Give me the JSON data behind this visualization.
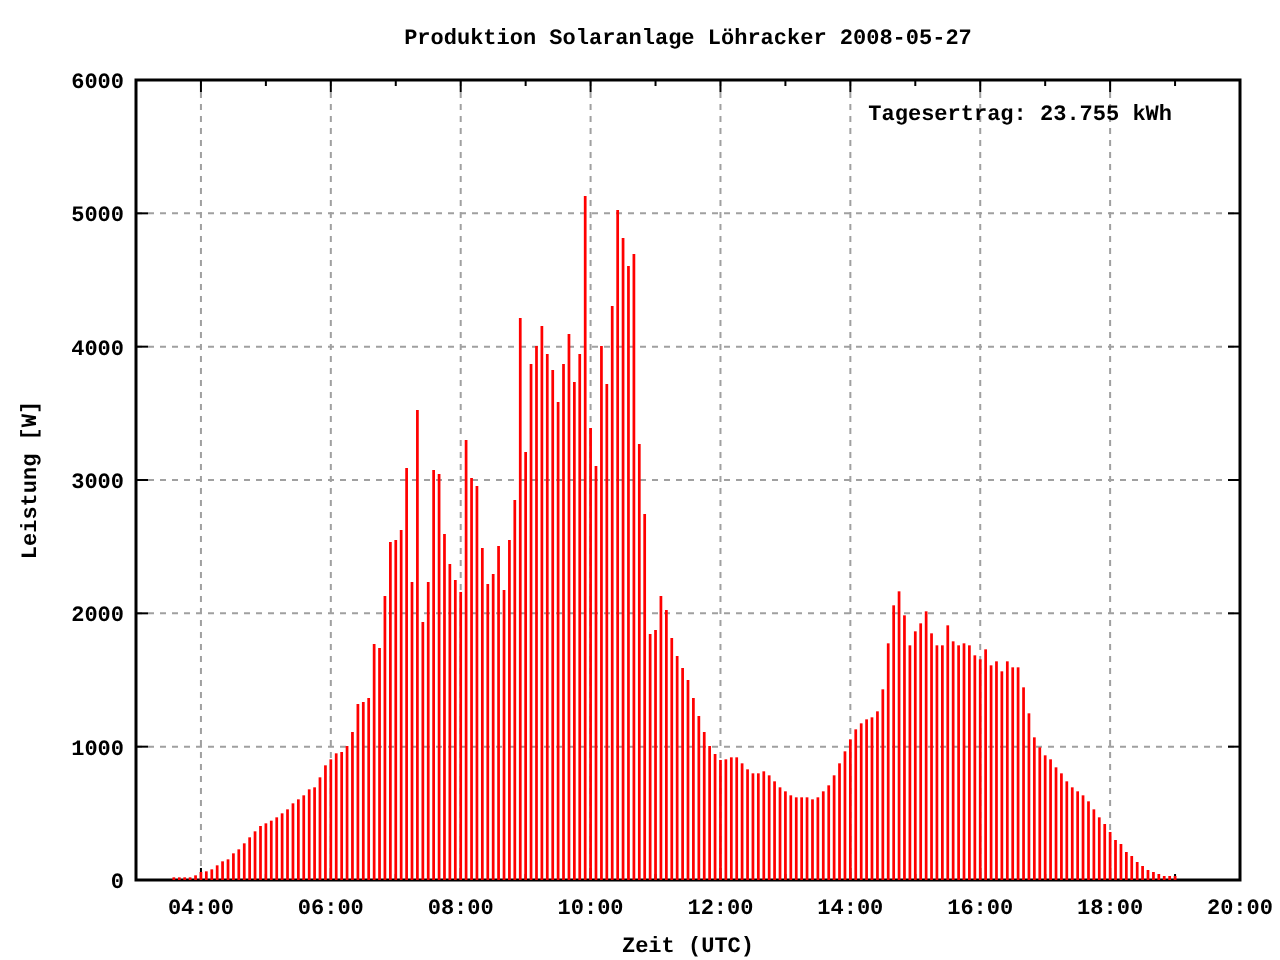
{
  "chart_data": {
    "type": "bar",
    "title": "Produktion Solaranlage Löhracker 2008-05-27",
    "xlabel": "Zeit (UTC)",
    "ylabel": "Leistung [W]",
    "annotations": [
      "Tagesertrag: 23.755 kWh"
    ],
    "x": [
      3.583,
      3.667,
      3.75,
      3.833,
      3.917,
      4,
      4.083,
      4.167,
      4.25,
      4.333,
      4.417,
      4.5,
      4.583,
      4.667,
      4.75,
      4.833,
      4.917,
      5,
      5.083,
      5.167,
      5.25,
      5.333,
      5.417,
      5.5,
      5.583,
      5.667,
      5.75,
      5.833,
      5.917,
      6,
      6.083,
      6.167,
      6.25,
      6.333,
      6.417,
      6.5,
      6.583,
      6.667,
      6.75,
      6.833,
      6.917,
      7,
      7.083,
      7.167,
      7.25,
      7.333,
      7.417,
      7.5,
      7.583,
      7.667,
      7.75,
      7.833,
      7.917,
      8,
      8.083,
      8.167,
      8.25,
      8.333,
      8.417,
      8.5,
      8.583,
      8.667,
      8.75,
      8.833,
      8.917,
      9,
      9.083,
      9.167,
      9.25,
      9.333,
      9.417,
      9.5,
      9.583,
      9.667,
      9.75,
      9.833,
      9.917,
      10,
      10.083,
      10.167,
      10.25,
      10.333,
      10.417,
      10.5,
      10.583,
      10.667,
      10.75,
      10.833,
      10.917,
      11,
      11.083,
      11.167,
      11.25,
      11.333,
      11.417,
      11.5,
      11.583,
      11.667,
      11.75,
      11.833,
      11.917,
      12,
      12.083,
      12.167,
      12.25,
      12.333,
      12.417,
      12.5,
      12.583,
      12.667,
      12.75,
      12.833,
      12.917,
      13,
      13.083,
      13.167,
      13.25,
      13.333,
      13.417,
      13.5,
      13.583,
      13.667,
      13.75,
      13.833,
      13.917,
      14,
      14.083,
      14.167,
      14.25,
      14.333,
      14.417,
      14.5,
      14.583,
      14.667,
      14.75,
      14.833,
      14.917,
      15,
      15.083,
      15.167,
      15.25,
      15.333,
      15.417,
      15.5,
      15.583,
      15.667,
      15.75,
      15.833,
      15.917,
      16,
      16.083,
      16.167,
      16.25,
      16.333,
      16.417,
      16.5,
      16.583,
      16.667,
      16.75,
      16.833,
      16.917,
      17,
      17.083,
      17.167,
      17.25,
      17.333,
      17.417,
      17.5,
      17.583,
      17.667,
      17.75,
      17.833,
      17.917,
      18,
      18.083,
      18.167,
      18.25,
      18.333,
      18.417,
      18.5,
      18.583,
      18.667,
      18.75,
      18.833,
      18.917,
      19
    ],
    "values": [
      20,
      20,
      20,
      20,
      35,
      60,
      65,
      80,
      110,
      140,
      155,
      200,
      230,
      275,
      320,
      365,
      405,
      425,
      445,
      470,
      500,
      530,
      575,
      605,
      635,
      680,
      695,
      770,
      860,
      905,
      950,
      960,
      1005,
      1110,
      1320,
      1335,
      1365,
      1770,
      1740,
      2130,
      2535,
      2550,
      2625,
      3090,
      2235,
      3525,
      1935,
      2235,
      3075,
      3045,
      2595,
      2370,
      2250,
      2160,
      3300,
      3015,
      2955,
      2490,
      2220,
      2295,
      2505,
      2175,
      2550,
      2850,
      4215,
      3210,
      3870,
      4005,
      4155,
      3945,
      3825,
      3585,
      3870,
      4095,
      3735,
      3945,
      5130,
      3390,
      3105,
      4005,
      3720,
      4305,
      5025,
      4815,
      4605,
      4695,
      3270,
      2745,
      1845,
      1875,
      2130,
      2025,
      1815,
      1680,
      1590,
      1500,
      1365,
      1230,
      1110,
      1005,
      945,
      900,
      905,
      920,
      920,
      875,
      830,
      800,
      800,
      815,
      785,
      740,
      695,
      665,
      635,
      620,
      620,
      620,
      605,
      620,
      665,
      710,
      785,
      875,
      965,
      1055,
      1130,
      1175,
      1205,
      1220,
      1265,
      1430,
      1775,
      2060,
      2165,
      1985,
      1760,
      1865,
      1925,
      2015,
      1850,
      1760,
      1760,
      1910,
      1790,
      1760,
      1775,
      1760,
      1685,
      1655,
      1730,
      1610,
      1640,
      1565,
      1640,
      1595,
      1595,
      1445,
      1250,
      1070,
      995,
      935,
      905,
      845,
      800,
      740,
      695,
      665,
      635,
      590,
      530,
      470,
      420,
      360,
      300,
      270,
      210,
      180,
      135,
      105,
      75,
      60,
      45,
      30,
      30,
      30
    ],
    "color": "#ff0000",
    "xlim": [
      3,
      20
    ],
    "xticks": [
      {
        "value": 4,
        "label": "04:00"
      },
      {
        "value": 5,
        "label": null
      },
      {
        "value": 6,
        "label": "06:00"
      },
      {
        "value": 7,
        "label": null
      },
      {
        "value": 8,
        "label": "08:00"
      },
      {
        "value": 9,
        "label": null
      },
      {
        "value": 10,
        "label": "10:00"
      },
      {
        "value": 11,
        "label": null
      },
      {
        "value": 12,
        "label": "12:00"
      },
      {
        "value": 13,
        "label": null
      },
      {
        "value": 14,
        "label": "14:00"
      },
      {
        "value": 15,
        "label": null
      },
      {
        "value": 16,
        "label": "16:00"
      },
      {
        "value": 17,
        "label": null
      },
      {
        "value": 18,
        "label": "18:00"
      },
      {
        "value": 19,
        "label": null
      },
      {
        "value": 20,
        "label": "20:00"
      }
    ],
    "ylim": [
      0,
      6000
    ],
    "yticks": [
      0,
      1000,
      2000,
      3000,
      4000,
      5000,
      6000
    ],
    "grid": true
  }
}
